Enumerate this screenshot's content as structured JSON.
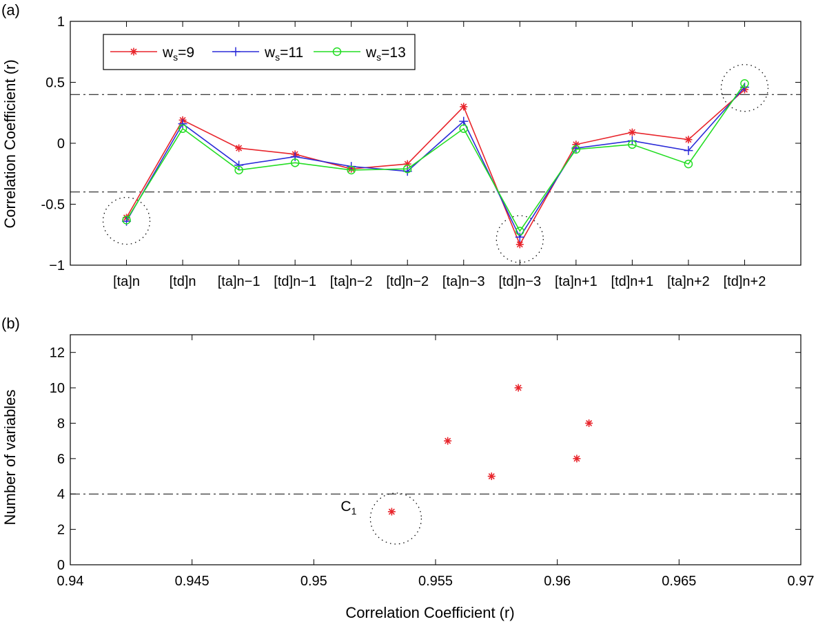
{
  "chart_data": [
    {
      "type": "line",
      "panel_label": "(a)",
      "title": "",
      "xlabel": "",
      "ylabel": "Correlation Coefficient (r)",
      "ylim": [
        -1,
        1
      ],
      "yticks": [
        -1,
        -0.5,
        0,
        0.5,
        1
      ],
      "ytick_labels": [
        "−1",
        "-0.5",
        "0",
        "0.5",
        "1"
      ],
      "categories": [
        "[ta]n",
        "[td]n",
        "[ta]n−1",
        "[td]n−1",
        "[ta]n−2",
        "[td]n−2",
        "[ta]n−3",
        "[td]n−3",
        "[ta]n+1",
        "[td]n+1",
        "[ta]n+2",
        "[td]n+2"
      ],
      "grid": false,
      "legend_position": "top-left",
      "series": [
        {
          "name_base": "w",
          "name_sub": "s",
          "name_suffix": "=9",
          "color": "#e8242b",
          "marker": "asterisk",
          "values": [
            -0.61,
            0.19,
            -0.04,
            -0.09,
            -0.21,
            -0.17,
            0.3,
            -0.83,
            -0.01,
            0.09,
            0.03,
            0.44
          ]
        },
        {
          "name_base": "w",
          "name_sub": "s",
          "name_suffix": "=11",
          "color": "#2b2bd8",
          "marker": "plus",
          "values": [
            -0.64,
            0.16,
            -0.18,
            -0.11,
            -0.19,
            -0.23,
            0.18,
            -0.77,
            -0.04,
            0.02,
            -0.06,
            0.46
          ]
        },
        {
          "name_base": "w",
          "name_sub": "s",
          "name_suffix": "=13",
          "color": "#22dd22",
          "marker": "circle",
          "values": [
            -0.63,
            0.12,
            -0.22,
            -0.16,
            -0.22,
            -0.21,
            0.12,
            -0.72,
            -0.05,
            -0.01,
            -0.17,
            0.49
          ]
        }
      ],
      "threshold_lines": [
        0.4,
        -0.4
      ],
      "highlight_circles_at": [
        "[ta]n",
        "[td]n−3",
        "[td]n+2"
      ]
    },
    {
      "type": "scatter",
      "panel_label": "(b)",
      "title": "",
      "xlabel": "Correlation Coefficient (r)",
      "ylabel": "Number of variables",
      "xlim": [
        0.94,
        0.97
      ],
      "ylim": [
        0,
        13
      ],
      "xticks": [
        0.94,
        0.945,
        0.95,
        0.955,
        0.96,
        0.965,
        0.97
      ],
      "xtick_labels": [
        "0.94",
        "0.945",
        "0.95",
        "0.955",
        "0.96",
        "0.965",
        "0.97"
      ],
      "yticks": [
        0,
        2,
        4,
        6,
        8,
        10,
        12
      ],
      "ytick_labels": [
        "0",
        "2",
        "4",
        "6",
        "8",
        "10",
        "12"
      ],
      "grid": false,
      "color": "#e8242b",
      "marker": "asterisk",
      "points": [
        {
          "x": 0.9532,
          "y": 3
        },
        {
          "x": 0.9555,
          "y": 7
        },
        {
          "x": 0.9573,
          "y": 5
        },
        {
          "x": 0.9584,
          "y": 10
        },
        {
          "x": 0.9608,
          "y": 6
        },
        {
          "x": 0.9613,
          "y": 8
        }
      ],
      "threshold_line": 4,
      "annotation": {
        "text": "C",
        "sub": "1",
        "x": 0.9532,
        "y": 3
      }
    }
  ]
}
